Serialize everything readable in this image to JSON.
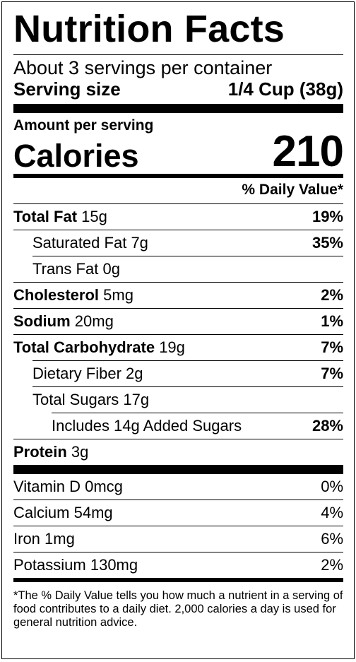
{
  "title": "Nutrition Facts",
  "servings_per_container": "About 3 servings per container",
  "serving_size": {
    "label": "Serving size",
    "value": "1/4 Cup (38g)"
  },
  "amount_per_serving": "Amount per serving",
  "calories": {
    "label": "Calories",
    "value": "210"
  },
  "daily_value_header": "% Daily Value*",
  "nutrients": [
    {
      "name": "Total Fat",
      "amount": "15g",
      "dv": "19%"
    },
    {
      "name": "Saturated Fat",
      "amount": "7g",
      "dv": "35%"
    },
    {
      "name": "Trans Fat",
      "amount": "0g",
      "dv": ""
    },
    {
      "name": "Cholesterol",
      "amount": "5mg",
      "dv": "2%"
    },
    {
      "name": "Sodium",
      "amount": "20mg",
      "dv": "1%"
    },
    {
      "name": "Total Carbohydrate",
      "amount": "19g",
      "dv": "7%"
    },
    {
      "name": "Dietary Fiber",
      "amount": "2g",
      "dv": "7%"
    },
    {
      "name": "Total Sugars",
      "amount": "17g",
      "dv": ""
    },
    {
      "name": "Includes 14g Added Sugars",
      "amount": "",
      "dv": "28%"
    },
    {
      "name": "Protein",
      "amount": "3g",
      "dv": ""
    }
  ],
  "vitamins": [
    {
      "name": "Vitamin D",
      "amount": "0mcg",
      "dv": "0%"
    },
    {
      "name": "Calcium",
      "amount": "54mg",
      "dv": "4%"
    },
    {
      "name": "Iron",
      "amount": "1mg",
      "dv": "6%"
    },
    {
      "name": "Potassium",
      "amount": "130mg",
      "dv": "2%"
    }
  ],
  "footnote": "*The % Daily Value tells you how much a nutrient in a serving of food contributes to a daily diet. 2,000 calories a day is used for general nutrition advice."
}
